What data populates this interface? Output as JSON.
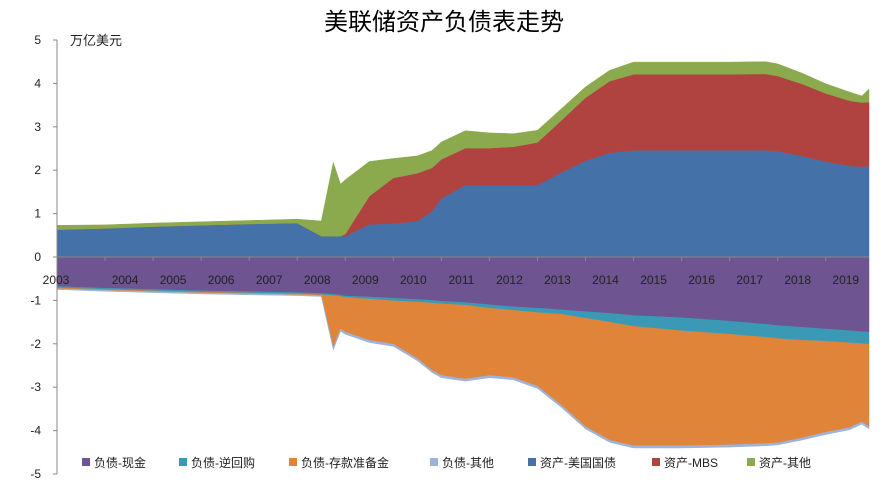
{
  "chart_data": {
    "type": "area",
    "title": "美联储资产负债表走势",
    "unit_label": "万亿美元",
    "xlabel": "",
    "ylabel": "万亿美元",
    "ylim": [
      -5,
      5
    ],
    "xlim": [
      2003.0,
      2019.9
    ],
    "y_ticks": [
      5,
      4,
      3,
      2,
      1,
      0,
      -1,
      -2,
      -3,
      -4,
      -5
    ],
    "x_ticks": [
      2003,
      2004,
      2005,
      2006,
      2007,
      2008,
      2009,
      2010,
      2011,
      2012,
      2013,
      2014,
      2015,
      2016,
      2017,
      2018,
      2019
    ],
    "grid": false,
    "legend_position": "bottom",
    "x": [
      2003.0,
      2004.0,
      2005.0,
      2006.0,
      2007.0,
      2008.0,
      2008.5,
      2008.75,
      2008.9,
      2009.0,
      2009.5,
      2010.0,
      2010.5,
      2010.8,
      2011.0,
      2011.5,
      2012.0,
      2012.5,
      2013.0,
      2013.5,
      2014.0,
      2014.5,
      2015.0,
      2016.0,
      2017.0,
      2017.75,
      2018.0,
      2018.5,
      2019.0,
      2019.5,
      2019.75,
      2019.9
    ],
    "asset_series": [
      {
        "name": "资产-美国国债",
        "color": "#4472A8",
        "values": [
          0.63,
          0.66,
          0.7,
          0.73,
          0.76,
          0.78,
          0.48,
          0.48,
          0.48,
          0.48,
          0.75,
          0.77,
          0.83,
          1.05,
          1.35,
          1.66,
          1.66,
          1.66,
          1.66,
          1.95,
          2.22,
          2.4,
          2.46,
          2.46,
          2.46,
          2.46,
          2.44,
          2.33,
          2.2,
          2.1,
          2.08,
          2.1
        ]
      },
      {
        "name": "资产-MBS",
        "color": "#B0433F",
        "values": [
          0,
          0,
          0,
          0,
          0,
          0,
          0,
          0,
          0,
          0.05,
          0.65,
          1.05,
          1.1,
          1.0,
          0.9,
          0.85,
          0.85,
          0.88,
          0.98,
          1.2,
          1.45,
          1.65,
          1.75,
          1.75,
          1.75,
          1.76,
          1.73,
          1.66,
          1.57,
          1.5,
          1.48,
          1.47
        ]
      },
      {
        "name": "资产-其他",
        "color": "#8BAA4E",
        "values": [
          0.1,
          0.08,
          0.08,
          0.08,
          0.08,
          0.09,
          0.35,
          1.7,
          1.2,
          1.25,
          0.8,
          0.45,
          0.4,
          0.4,
          0.4,
          0.4,
          0.35,
          0.3,
          0.28,
          0.27,
          0.25,
          0.25,
          0.28,
          0.28,
          0.28,
          0.28,
          0.28,
          0.25,
          0.22,
          0.2,
          0.15,
          0.3
        ]
      }
    ],
    "liability_series": [
      {
        "name": "负债-现金",
        "color": "#6E5490",
        "values": [
          -0.68,
          -0.72,
          -0.75,
          -0.78,
          -0.8,
          -0.82,
          -0.84,
          -0.86,
          -0.88,
          -0.9,
          -0.92,
          -0.95,
          -0.98,
          -1.0,
          -1.02,
          -1.05,
          -1.1,
          -1.15,
          -1.18,
          -1.22,
          -1.26,
          -1.3,
          -1.35,
          -1.4,
          -1.48,
          -1.55,
          -1.58,
          -1.62,
          -1.66,
          -1.7,
          -1.72,
          -1.73
        ]
      },
      {
        "name": "负债-逆回购",
        "color": "#3A9AB6",
        "values": [
          -0.03,
          -0.03,
          -0.03,
          -0.03,
          -0.03,
          -0.03,
          -0.03,
          -0.03,
          -0.03,
          -0.03,
          -0.05,
          -0.06,
          -0.06,
          -0.06,
          -0.06,
          -0.06,
          -0.08,
          -0.08,
          -0.1,
          -0.1,
          -0.15,
          -0.2,
          -0.25,
          -0.3,
          -0.3,
          -0.3,
          -0.3,
          -0.3,
          -0.28,
          -0.28,
          -0.28,
          -0.28
        ]
      },
      {
        "name": "负债-存款准备金",
        "color": "#DF8439",
        "values": [
          -0.02,
          -0.02,
          -0.02,
          -0.02,
          -0.02,
          -0.02,
          -0.02,
          -1.2,
          -0.75,
          -0.8,
          -0.95,
          -1.0,
          -1.3,
          -1.55,
          -1.65,
          -1.7,
          -1.55,
          -1.55,
          -1.7,
          -2.1,
          -2.5,
          -2.72,
          -2.75,
          -2.65,
          -2.55,
          -2.45,
          -2.4,
          -2.25,
          -2.1,
          -1.95,
          -1.8,
          -1.9
        ]
      },
      {
        "name": "负债-其他",
        "color": "#9DB3DA",
        "values": [
          -0.02,
          -0.02,
          -0.02,
          -0.02,
          -0.02,
          -0.02,
          -0.02,
          -0.05,
          -0.05,
          -0.05,
          -0.05,
          -0.05,
          -0.05,
          -0.05,
          -0.05,
          -0.05,
          -0.05,
          -0.05,
          -0.05,
          -0.05,
          -0.05,
          -0.05,
          -0.05,
          -0.05,
          -0.05,
          -0.05,
          -0.05,
          -0.05,
          -0.05,
          -0.05,
          -0.05,
          -0.05
        ]
      }
    ],
    "legend_order": [
      {
        "name": "负债-现金",
        "color": "#6E5490"
      },
      {
        "name": "负债-逆回购",
        "color": "#3A9AB6"
      },
      {
        "name": "负债-存款准备金",
        "color": "#DF8439"
      },
      {
        "name": "负债-其他",
        "color": "#9DB3DA"
      },
      {
        "name": "资产-美国国债",
        "color": "#4472A8"
      },
      {
        "name": "资产-MBS",
        "color": "#B0433F"
      },
      {
        "name": "资产-其他",
        "color": "#8BAA4E"
      }
    ]
  }
}
